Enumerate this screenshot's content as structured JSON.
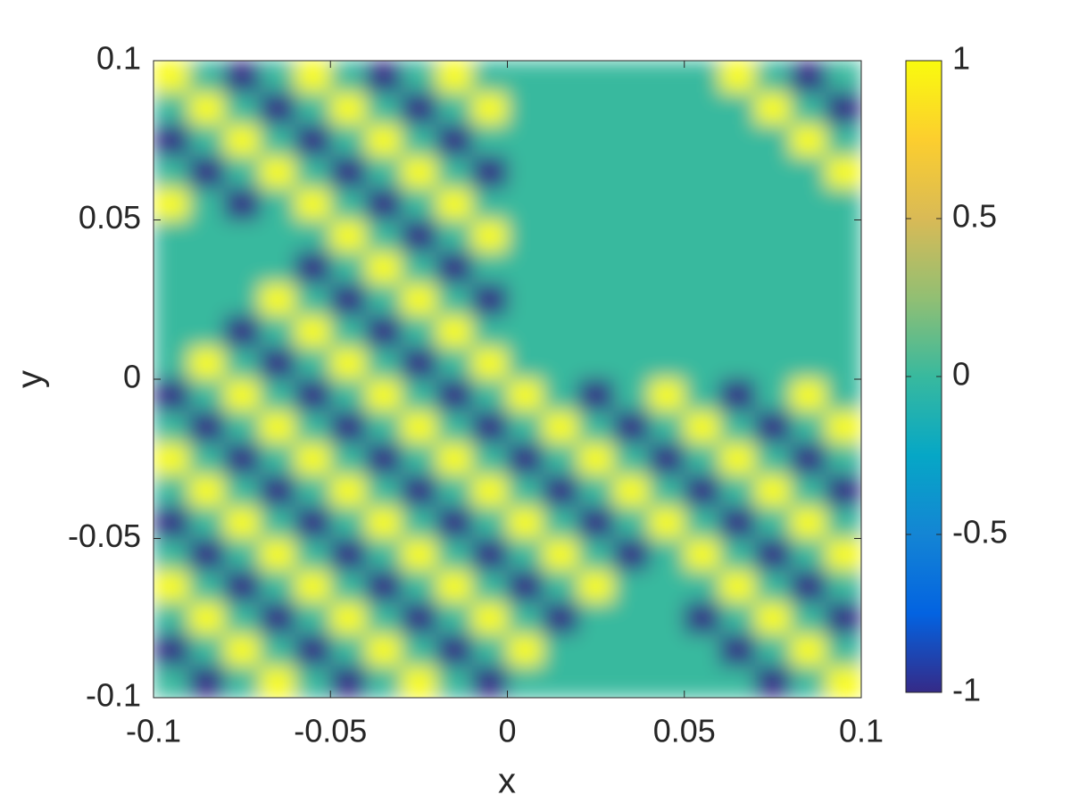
{
  "chart_data": {
    "type": "heatmap",
    "x_label": "x",
    "y_label": "y",
    "xlim": [
      -0.1,
      0.1
    ],
    "ylim": [
      -0.1,
      0.1
    ],
    "xticks": [
      -0.1,
      -0.05,
      0,
      0.05,
      0.1
    ],
    "yticks": [
      -0.1,
      -0.05,
      0,
      0.05,
      0.1
    ],
    "clim": [
      -1,
      1
    ],
    "cticks": [
      -1,
      -0.5,
      0,
      0.5,
      1
    ],
    "colormap": [
      "#352a87",
      "#0363e1",
      "#1485d4",
      "#06a7c6",
      "#38b99e",
      "#92bf73",
      "#d9ba56",
      "#fcce2e",
      "#f9fb0e"
    ],
    "values": [
      [
        1,
        0,
        -1,
        0,
        1,
        0,
        -1,
        0,
        1,
        0,
        0,
        0,
        0,
        0,
        0,
        0,
        1,
        0,
        -1,
        0
      ],
      [
        0,
        1,
        0,
        -1,
        0,
        1,
        0,
        -1,
        0,
        1,
        0,
        0,
        0,
        0,
        0,
        0,
        0,
        1,
        0,
        -1
      ],
      [
        -1,
        0,
        1,
        0,
        -1,
        0,
        1,
        0,
        -1,
        0,
        0,
        0,
        0,
        0,
        0,
        0,
        0,
        0,
        1,
        0
      ],
      [
        0,
        -1,
        0,
        1,
        0,
        -1,
        0,
        1,
        0,
        -1,
        0,
        0,
        0,
        0,
        0,
        0,
        0,
        0,
        0,
        1
      ],
      [
        1,
        0,
        -1,
        0,
        1,
        0,
        -1,
        0,
        1,
        0,
        0,
        0,
        0,
        0,
        0,
        0,
        0,
        0,
        0,
        0
      ],
      [
        0,
        0,
        0,
        0,
        0,
        1,
        0,
        -1,
        0,
        1,
        0,
        0,
        0,
        0,
        0,
        0,
        0,
        0,
        0,
        0
      ],
      [
        0,
        0,
        0,
        0,
        -1,
        0,
        1,
        0,
        -1,
        0,
        0,
        0,
        0,
        0,
        0,
        0,
        0,
        0,
        0,
        0
      ],
      [
        0,
        0,
        0,
        1,
        0,
        -1,
        0,
        1,
        0,
        -1,
        0,
        0,
        0,
        0,
        0,
        0,
        0,
        0,
        0,
        0
      ],
      [
        0,
        0,
        -1,
        0,
        1,
        0,
        -1,
        0,
        1,
        0,
        0,
        0,
        0,
        0,
        0,
        0,
        0,
        0,
        0,
        0
      ],
      [
        0,
        1,
        0,
        -1,
        0,
        1,
        0,
        -1,
        0,
        1,
        0,
        0,
        0,
        0,
        0,
        0,
        0,
        0,
        0,
        0
      ],
      [
        -1,
        0,
        1,
        0,
        -1,
        0,
        1,
        0,
        -1,
        0,
        1,
        0,
        -1,
        0,
        1,
        0,
        -1,
        0,
        1,
        0
      ],
      [
        0,
        -1,
        0,
        1,
        0,
        -1,
        0,
        1,
        0,
        -1,
        0,
        1,
        0,
        -1,
        0,
        1,
        0,
        -1,
        0,
        1
      ],
      [
        1,
        0,
        -1,
        0,
        1,
        0,
        -1,
        0,
        1,
        0,
        -1,
        0,
        1,
        0,
        -1,
        0,
        1,
        0,
        -1,
        0
      ],
      [
        0,
        1,
        0,
        -1,
        0,
        1,
        0,
        -1,
        0,
        1,
        0,
        -1,
        0,
        1,
        0,
        -1,
        0,
        1,
        0,
        -1
      ],
      [
        -1,
        0,
        1,
        0,
        -1,
        0,
        1,
        0,
        -1,
        0,
        1,
        0,
        -1,
        0,
        1,
        0,
        -1,
        0,
        1,
        0
      ],
      [
        0,
        -1,
        0,
        1,
        0,
        -1,
        0,
        1,
        0,
        -1,
        0,
        1,
        0,
        -1,
        0,
        1,
        0,
        -1,
        0,
        1
      ],
      [
        1,
        0,
        -1,
        0,
        1,
        0,
        -1,
        0,
        1,
        0,
        -1,
        0,
        1,
        0,
        0,
        0,
        1,
        0,
        -1,
        0
      ],
      [
        0,
        1,
        0,
        -1,
        0,
        1,
        0,
        -1,
        0,
        1,
        0,
        -1,
        0,
        0,
        0,
        -1,
        0,
        1,
        0,
        -1
      ],
      [
        -1,
        0,
        1,
        0,
        -1,
        0,
        1,
        0,
        -1,
        0,
        1,
        0,
        0,
        0,
        0,
        0,
        -1,
        0,
        1,
        0
      ],
      [
        0,
        -1,
        0,
        1,
        0,
        -1,
        0,
        1,
        0,
        -1,
        0,
        0,
        0,
        0,
        0,
        0,
        0,
        -1,
        0,
        1
      ]
    ]
  }
}
